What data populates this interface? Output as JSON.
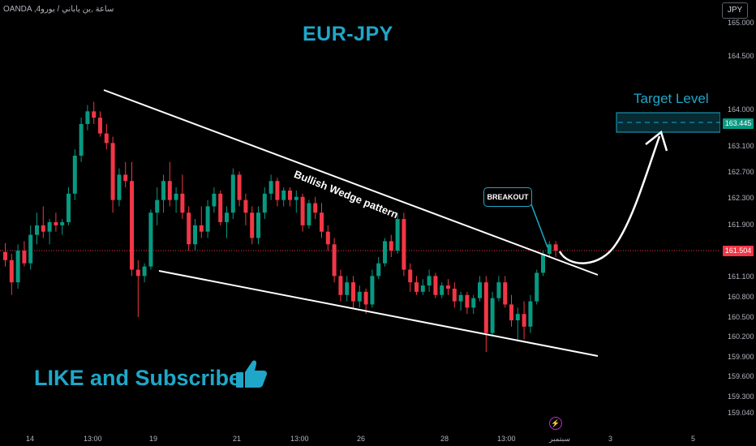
{
  "header": {
    "symbol_text": "OANDA ,4ساعة ,ين ياباني / يورو",
    "currency_button": "JPY"
  },
  "title": "EUR-JPY",
  "price_axis": {
    "ticks": [
      "165.000",
      "164.500",
      "164.000",
      "163.100",
      "162.700",
      "162.300",
      "161.900",
      "161.100",
      "160.800",
      "160.500",
      "160.200",
      "159.900",
      "159.600",
      "159.300",
      "159.040"
    ],
    "current_price": "161.504",
    "target_price": "163.445"
  },
  "time_axis": {
    "ticks": [
      "14",
      "13:00",
      "19",
      "21",
      "13:00",
      "26",
      "28",
      "13:00",
      "سبتمبر",
      "3",
      "5"
    ]
  },
  "annotations": {
    "pattern_label": "Bullish Wedge pattern",
    "breakout_label": "BREAKOUT",
    "target_label": "Target Level",
    "cta_text": "LIKE and Subscribe"
  },
  "colors": {
    "bull": "#089981",
    "bear": "#f23645",
    "accent": "#1fa7c9",
    "background": "#000000"
  },
  "chart_data": {
    "type": "candlestick",
    "ohlc": [
      [
        161.58,
        161.72,
        161.35,
        161.45
      ],
      [
        161.45,
        161.55,
        160.9,
        161.1
      ],
      [
        161.1,
        161.7,
        161.0,
        161.6
      ],
      [
        161.6,
        161.75,
        161.35,
        161.4
      ],
      [
        161.4,
        162.0,
        161.3,
        161.85
      ],
      [
        161.85,
        162.2,
        161.7,
        162.0
      ],
      [
        162.0,
        162.3,
        161.8,
        161.9
      ],
      [
        161.9,
        162.1,
        161.7,
        162.05
      ],
      [
        162.05,
        162.2,
        161.9,
        162.0
      ],
      [
        162.0,
        162.1,
        161.85,
        162.05
      ],
      [
        162.05,
        162.6,
        162.0,
        162.5
      ],
      [
        162.5,
        163.2,
        162.4,
        163.1
      ],
      [
        163.1,
        163.7,
        163.0,
        163.6
      ],
      [
        163.6,
        163.9,
        163.5,
        163.8
      ],
      [
        163.8,
        163.95,
        163.6,
        163.7
      ],
      [
        163.7,
        163.8,
        163.4,
        163.45
      ],
      [
        163.45,
        163.6,
        163.2,
        163.3
      ],
      [
        163.3,
        163.4,
        162.2,
        162.4
      ],
      [
        162.4,
        162.9,
        162.3,
        162.8
      ],
      [
        162.8,
        163.0,
        162.6,
        162.7
      ],
      [
        162.7,
        163.0,
        161.2,
        161.3
      ],
      [
        161.3,
        161.45,
        160.55,
        161.2
      ],
      [
        161.2,
        161.4,
        161.1,
        161.35
      ],
      [
        161.35,
        162.25,
        161.3,
        162.2
      ],
      [
        162.2,
        162.6,
        162.0,
        162.4
      ],
      [
        162.4,
        162.8,
        162.2,
        162.7
      ],
      [
        162.7,
        163.0,
        162.3,
        162.4
      ],
      [
        162.4,
        162.6,
        162.2,
        162.5
      ],
      [
        162.5,
        162.8,
        162.1,
        162.2
      ],
      [
        162.2,
        162.3,
        161.6,
        161.7
      ],
      [
        161.7,
        162.1,
        161.6,
        162.0
      ],
      [
        162.0,
        162.3,
        161.8,
        161.9
      ],
      [
        161.9,
        162.4,
        161.8,
        162.3
      ],
      [
        162.3,
        162.6,
        162.2,
        162.5
      ],
      [
        162.5,
        162.55,
        162.0,
        162.05
      ],
      [
        162.05,
        162.3,
        161.8,
        162.2
      ],
      [
        162.2,
        162.9,
        162.1,
        162.8
      ],
      [
        162.8,
        162.85,
        162.3,
        162.4
      ],
      [
        162.4,
        162.5,
        162.0,
        162.2
      ],
      [
        162.2,
        162.3,
        161.7,
        161.8
      ],
      [
        161.8,
        162.3,
        161.7,
        162.2
      ],
      [
        162.2,
        162.6,
        162.1,
        162.5
      ],
      [
        162.5,
        162.8,
        162.4,
        162.7
      ],
      [
        162.7,
        162.75,
        162.3,
        162.4
      ],
      [
        162.4,
        162.6,
        162.3,
        162.55
      ],
      [
        162.55,
        162.6,
        162.3,
        162.4
      ],
      [
        162.4,
        162.55,
        162.2,
        162.45
      ],
      [
        162.45,
        162.5,
        161.9,
        162.0
      ],
      [
        162.0,
        162.4,
        161.95,
        162.35
      ],
      [
        162.35,
        162.45,
        162.1,
        162.2
      ],
      [
        162.2,
        162.35,
        161.8,
        161.9
      ],
      [
        161.9,
        162.0,
        161.6,
        161.7
      ],
      [
        161.7,
        161.8,
        161.1,
        161.2
      ],
      [
        161.2,
        161.3,
        160.8,
        160.9
      ],
      [
        160.9,
        161.2,
        160.8,
        161.1
      ],
      [
        161.1,
        161.2,
        160.7,
        160.8
      ],
      [
        160.8,
        161.05,
        160.7,
        160.95
      ],
      [
        160.95,
        161.0,
        160.6,
        160.75
      ],
      [
        160.75,
        161.3,
        160.7,
        161.2
      ],
      [
        161.2,
        161.5,
        161.15,
        161.4
      ],
      [
        161.4,
        161.8,
        161.35,
        161.75
      ],
      [
        161.75,
        161.85,
        161.5,
        161.6
      ],
      [
        161.6,
        162.2,
        161.55,
        162.1
      ],
      [
        162.1,
        162.2,
        161.2,
        161.3
      ],
      [
        161.3,
        161.4,
        160.95,
        161.1
      ],
      [
        161.1,
        161.2,
        160.9,
        160.95
      ],
      [
        160.95,
        161.15,
        160.9,
        161.05
      ],
      [
        161.05,
        161.3,
        160.95,
        161.2
      ],
      [
        161.2,
        161.25,
        160.85,
        160.9
      ],
      [
        160.9,
        161.1,
        160.85,
        161.05
      ],
      [
        161.05,
        161.15,
        160.9,
        161.0
      ],
      [
        161.0,
        161.1,
        160.7,
        160.8
      ],
      [
        160.8,
        160.95,
        160.65,
        160.9
      ],
      [
        160.9,
        160.95,
        160.6,
        160.7
      ],
      [
        160.7,
        160.9,
        160.6,
        160.85
      ],
      [
        160.85,
        161.2,
        160.8,
        161.1
      ],
      [
        161.1,
        161.2,
        160.0,
        160.3
      ],
      [
        160.3,
        160.95,
        160.25,
        160.85
      ],
      [
        160.85,
        161.2,
        160.8,
        161.1
      ],
      [
        161.1,
        161.2,
        160.7,
        160.75
      ],
      [
        160.75,
        160.9,
        160.4,
        160.5
      ],
      [
        160.5,
        160.7,
        160.2,
        160.6
      ],
      [
        160.6,
        160.8,
        160.2,
        160.4
      ],
      [
        160.4,
        160.9,
        160.3,
        160.8
      ],
      [
        160.8,
        161.3,
        160.75,
        161.25
      ],
      [
        161.25,
        161.6,
        161.2,
        161.55
      ],
      [
        161.55,
        161.75,
        161.5,
        161.7
      ],
      [
        161.7,
        161.75,
        161.5,
        161.6
      ]
    ],
    "ylim": [
      159.04,
      165.2
    ]
  }
}
